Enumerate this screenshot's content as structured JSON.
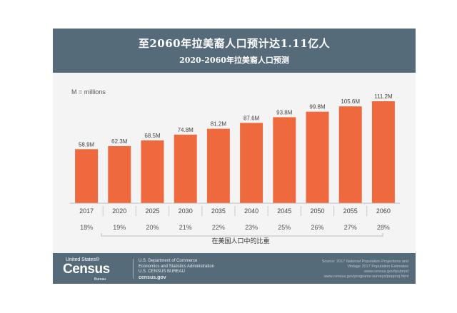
{
  "header": {
    "title": "至2060年拉美裔人口预计达1.11亿人",
    "subtitle": "2020-2060年拉美裔人口预测"
  },
  "chart_data": {
    "type": "bar",
    "unit_note": "M = millions",
    "categories": [
      "2017",
      "2020",
      "2025",
      "2030",
      "2035",
      "2040",
      "2045",
      "2050",
      "2055",
      "2060"
    ],
    "values": [
      58.9,
      62.3,
      68.5,
      74.8,
      81.2,
      87.6,
      93.8,
      99.8,
      105.6,
      111.2
    ],
    "value_labels": [
      "58.9M",
      "62.3M",
      "68.5M",
      "74.8M",
      "81.2M",
      "87.6M",
      "93.8M",
      "99.8M",
      "105.6M",
      "111.2M"
    ],
    "shares": [
      "18%",
      "19%",
      "20%",
      "21%",
      "22%",
      "23%",
      "25%",
      "26%",
      "27%",
      "28%"
    ],
    "share_caption": "在美国人口中的比重",
    "ylim": [
      0,
      111.2
    ],
    "bar_color": "#ee6a3e"
  },
  "footer": {
    "logo_prefix": "United States®",
    "logo_word": "Census",
    "logo_suffix": "Bureau",
    "dept_lines": [
      "U.S. Department of Commerce",
      "Economics and Statistics Administration",
      "U.S. CENSUS BUREAU",
      "census.gov"
    ],
    "source_lines": [
      "Source: 2017 National Population Projections and",
      "Vintage 2017 Population Estimates",
      "www.census.gov/ipc/prod",
      "www.census.gov/programs-surveys/popproj.html"
    ]
  }
}
